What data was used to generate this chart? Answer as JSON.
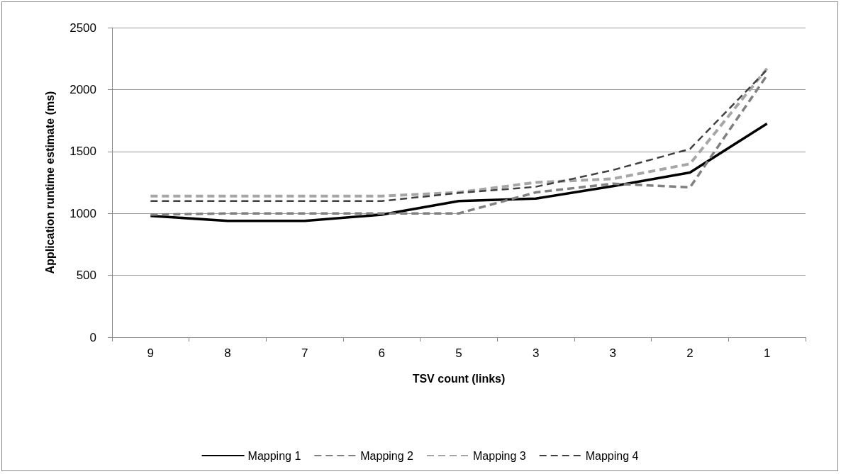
{
  "chart_data": {
    "type": "line",
    "xlabel": "TSV count (links)",
    "ylabel": "Application runtime estimate (ms)",
    "categories": [
      "9",
      "8",
      "7",
      "6",
      "5",
      "3",
      "3",
      "2",
      "1"
    ],
    "series": [
      {
        "name": "Mapping 1",
        "color": "#000000",
        "line_style": "solid",
        "values": [
          980,
          940,
          940,
          990,
          1100,
          1120,
          1220,
          1330,
          1725
        ]
      },
      {
        "name": "Mapping 2",
        "color": "#808080",
        "line_style": "dashed",
        "values": [
          990,
          1000,
          1000,
          1000,
          1000,
          1170,
          1240,
          1210,
          2115
        ]
      },
      {
        "name": "Mapping 3",
        "color": "#a6a6a6",
        "line_style": "dashed",
        "values": [
          1140,
          1140,
          1140,
          1140,
          1170,
          1250,
          1280,
          1400,
          2170
        ]
      },
      {
        "name": "Mapping 4",
        "color": "#404040",
        "line_style": "dashed",
        "values": [
          1100,
          1100,
          1100,
          1100,
          1165,
          1215,
          1350,
          1520,
          2160
        ]
      }
    ],
    "ylim": [
      0,
      2500
    ],
    "yticks": [
      0,
      500,
      1000,
      1500,
      2000,
      2500
    ],
    "grid": "y",
    "legend": "bottom",
    "marker": "none"
  }
}
